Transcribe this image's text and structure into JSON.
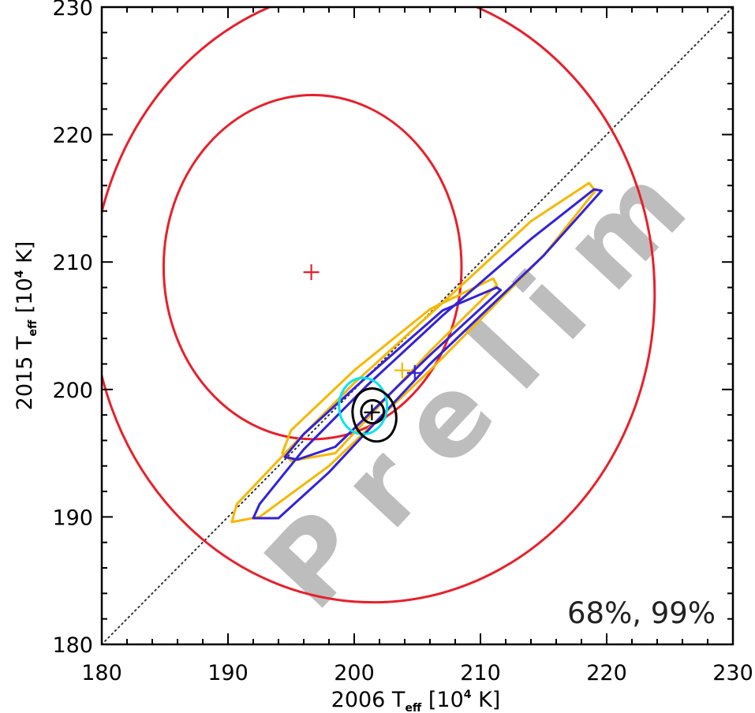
{
  "chart_data": {
    "type": "contour",
    "title": "",
    "xlabel": {
      "pre": "2006 T",
      "sub": "eff",
      "mid": " [10",
      "sup": "4",
      "post": " K]"
    },
    "ylabel": {
      "pre": "2015 T",
      "sub": "eff",
      "mid": " [10",
      "sup": "4",
      "post": " K]"
    },
    "xlim": [
      180,
      230
    ],
    "ylim": [
      180,
      230
    ],
    "x_ticks": [
      180,
      190,
      200,
      210,
      220,
      230
    ],
    "y_ticks": [
      180,
      190,
      200,
      210,
      220,
      230
    ],
    "x_tick_labels": [
      "180",
      "190",
      "200",
      "210",
      "220",
      "230"
    ],
    "y_tick_labels": [
      "180",
      "190",
      "200",
      "210",
      "220",
      "230"
    ],
    "minor_step": 2,
    "grid": false,
    "annotation": "68%, 99%",
    "watermark": "Prelim",
    "reference_line": {
      "style": "dotted",
      "color": "#333333",
      "points": [
        [
          180,
          180
        ],
        [
          230,
          230
        ]
      ]
    },
    "series": [
      {
        "color": "#e8202a",
        "best_fit": [
          196.6,
          209.2
        ],
        "contours": [
          {
            "type": "ellipse",
            "center": [
              196.7,
              209.6
            ],
            "rx": 11.8,
            "ry": 13.5,
            "angle": 0
          },
          {
            "type": "ellipse",
            "center": [
              201.5,
              207.5
            ],
            "rx": 22.3,
            "ry": 24.2,
            "angle": 0
          }
        ]
      },
      {
        "color": "#f5b800",
        "best_fit": [
          203.8,
          201.5
        ],
        "contours": [
          {
            "type": "polygon",
            "points": [
              [
                211.0,
                208.7
              ],
              [
                211.3,
                208.2
              ],
              [
                206.0,
                203.0
              ],
              [
                198.5,
                195.0
              ],
              [
                195.0,
                194.4
              ],
              [
                194.3,
                195.0
              ],
              [
                195.0,
                196.8
              ],
              [
                200.0,
                201.5
              ],
              [
                206.0,
                206.3
              ]
            ]
          },
          {
            "type": "polygon",
            "points": [
              [
                218.6,
                216.2
              ],
              [
                219.1,
                215.6
              ],
              [
                215.0,
                210.5
              ],
              [
                206.0,
                201.5
              ],
              [
                198.0,
                194.0
              ],
              [
                192.5,
                190.0
              ],
              [
                190.3,
                189.6
              ],
              [
                190.7,
                191.0
              ],
              [
                195.0,
                195.5
              ],
              [
                200.0,
                200.5
              ],
              [
                207.0,
                206.8
              ],
              [
                214.0,
                213.2
              ]
            ]
          }
        ]
      },
      {
        "color": "#3322d8",
        "best_fit": [
          204.8,
          201.3
        ],
        "contours": [
          {
            "type": "polygon",
            "points": [
              [
                211.3,
                208.0
              ],
              [
                211.6,
                207.8
              ],
              [
                206.0,
                202.7
              ],
              [
                198.5,
                195.5
              ],
              [
                195.5,
                194.5
              ],
              [
                194.5,
                194.7
              ],
              [
                196.0,
                196.5
              ],
              [
                201.0,
                201.0
              ],
              [
                207.0,
                206.2
              ]
            ]
          },
          {
            "type": "polygon",
            "points": [
              [
                219.0,
                215.7
              ],
              [
                219.6,
                215.6
              ],
              [
                215.0,
                210.5
              ],
              [
                206.0,
                202.0
              ],
              [
                198.0,
                193.5
              ],
              [
                194.0,
                189.9
              ],
              [
                192.0,
                189.9
              ],
              [
                192.5,
                191.0
              ],
              [
                196.0,
                195.3
              ],
              [
                201.0,
                200.3
              ],
              [
                207.0,
                205.8
              ],
              [
                214.0,
                211.8
              ]
            ]
          }
        ]
      },
      {
        "color": "#00e5ef",
        "best_fit": null,
        "contours": [
          {
            "type": "ellipse",
            "center": [
              200.7,
              198.7
            ],
            "rx": 1.9,
            "ry": 2.2,
            "angle": 0
          }
        ]
      },
      {
        "color": "#000000",
        "best_fit": [
          201.4,
          198.2
        ],
        "contours": [
          {
            "type": "ellipse",
            "center": [
              201.45,
              198.25
            ],
            "rx": 0.9,
            "ry": 0.9,
            "angle": 0
          },
          {
            "type": "ellipse",
            "center": [
              201.6,
              198.0
            ],
            "rx": 1.7,
            "ry": 2.1,
            "angle": -15
          }
        ]
      }
    ]
  }
}
